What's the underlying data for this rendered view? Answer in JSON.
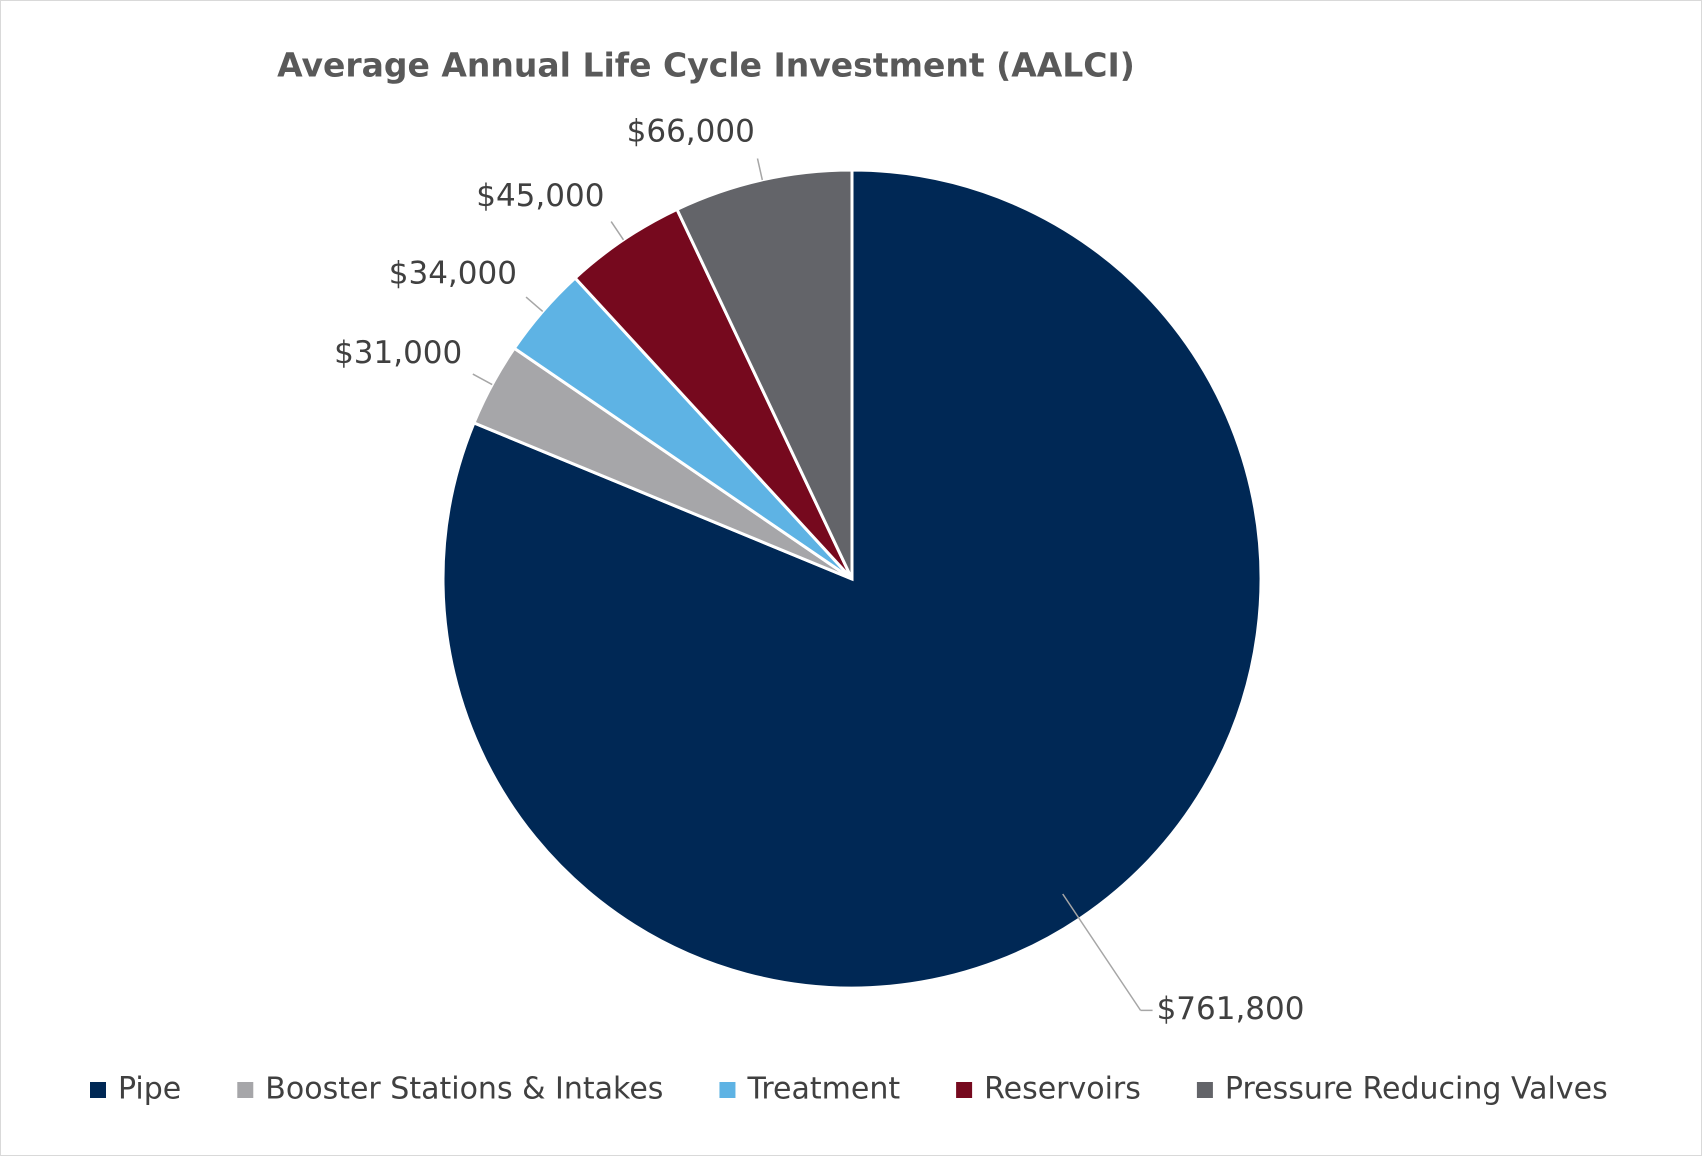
{
  "chart_data": {
    "type": "pie",
    "title": "Average Annual Life Cycle Investment (AALCI)",
    "categories": [
      "Pipe",
      "Booster Stations & Intakes",
      "Treatment",
      "Reservoirs",
      "Pressure Reducing Valves"
    ],
    "values": [
      761800,
      31000,
      34000,
      45000,
      66000
    ],
    "value_labels": [
      "$761,800",
      "$31,000",
      "$34,000",
      "$45,000",
      "$66,000"
    ],
    "colors": [
      "#002855",
      "#a6a6a9",
      "#5eb3e4",
      "#76091e",
      "#636469"
    ],
    "legend": "bottom"
  }
}
